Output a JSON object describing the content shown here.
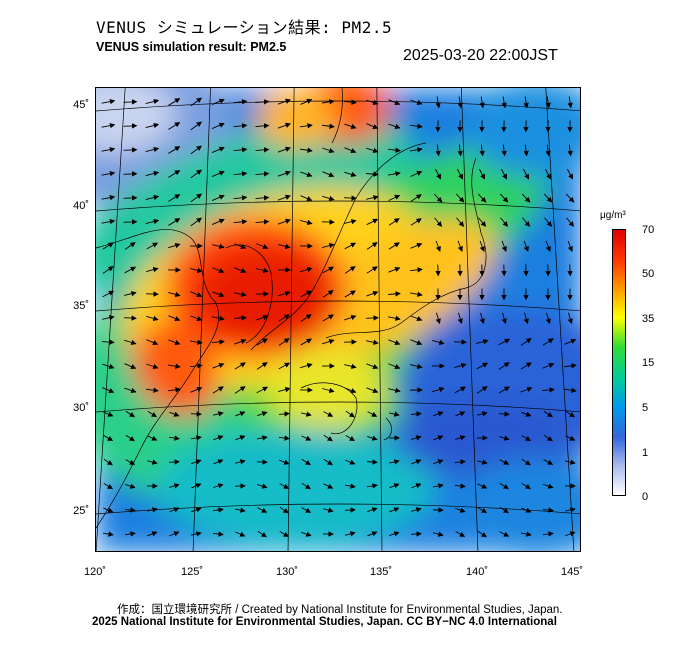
{
  "header": {
    "title_ja": "VENUS シミュレーション結果: PM2.5",
    "title_en": "VENUS simulation result: PM2.5",
    "timestamp": "2025-03-20 22:00JST"
  },
  "map": {
    "lon_range": [
      120,
      145
    ],
    "lat_range": [
      23,
      46
    ],
    "lon_labels": [
      "120˚",
      "125˚",
      "130˚",
      "135˚",
      "140˚",
      "145˚"
    ],
    "lat_labels": [
      "45˚",
      "40˚",
      "35˚",
      "30˚",
      "25˚"
    ],
    "field": "PM2.5 concentration with wind vectors"
  },
  "colorbar": {
    "unit": "μg/m³",
    "labels": [
      "70",
      "50",
      "35",
      "15",
      "5",
      "1",
      "0"
    ],
    "colors": [
      "#e00000",
      "#ff3300",
      "#ff9900",
      "#ffff00",
      "#33dd33",
      "#00cc99",
      "#0099ee",
      "#3366dd",
      "#aabbee",
      "#ffffff"
    ]
  },
  "footer": {
    "credit_line1": "作成：国立環境研究所 / Created by National Institute for Environmental Studies, Japan.",
    "credit_line2": "2025 National Institute for Environmental Studies, Japan. CC BY−NC 4.0 International"
  }
}
